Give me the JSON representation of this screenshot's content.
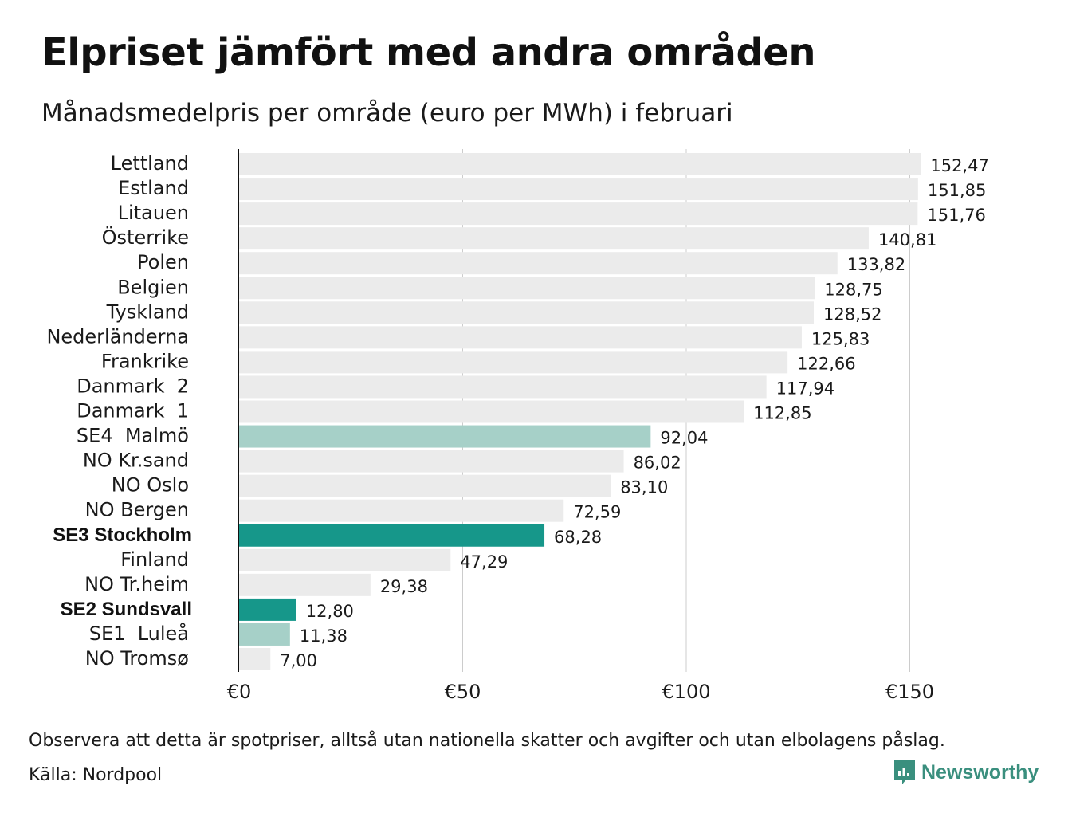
{
  "title": "Elpriset jämfört med andra områden",
  "subtitle": "Månadsmedelpris per område (euro per MWh) i februari",
  "note": "Observera att detta är spotpriser, alltså utan nationella skatter och avgifter och utan elbolagens påslag.",
  "source": "Källa: Nordpool",
  "brand": {
    "name": "Newsworthy",
    "icon": "newsworthy-logo-icon"
  },
  "colors": {
    "default": "#ebebeb",
    "se_other": "#a6d0c8",
    "se_highlight": "#16978a",
    "axis": "#111111",
    "grid": "#cccccc"
  },
  "chart_data": {
    "type": "bar",
    "orientation": "horizontal",
    "categories": [
      "Lettland",
      "Estland",
      "Litauen",
      "Österrike",
      "Polen",
      "Belgien",
      "Tyskland",
      "Nederländerna",
      "Frankrike",
      "Danmark  2",
      "Danmark  1",
      "SE4  Malmö",
      "NO Kr.sand",
      "NO Oslo",
      "NO Bergen",
      "SE3 Stockholm",
      "Finland",
      "NO Tr.heim",
      "SE2 Sundsvall",
      "SE1  Luleå",
      "NO Tromsø"
    ],
    "values": [
      152.47,
      151.85,
      151.76,
      140.81,
      133.82,
      128.75,
      128.52,
      125.83,
      122.66,
      117.94,
      112.85,
      92.04,
      86.02,
      83.1,
      72.59,
      68.28,
      47.29,
      29.38,
      12.8,
      11.38,
      7.0
    ],
    "value_labels": [
      "152,47",
      "151,85",
      "151,76",
      "140,81",
      "133,82",
      "128,75",
      "128,52",
      "125,83",
      "122,66",
      "117,94",
      "112,85",
      "92,04",
      "86,02",
      "83,10",
      "72,59",
      "68,28",
      "47,29",
      "29,38",
      "12,80",
      "11,38",
      "7,00"
    ],
    "styles": [
      "default",
      "default",
      "default",
      "default",
      "default",
      "default",
      "default",
      "default",
      "default",
      "default",
      "default",
      "se_other",
      "default",
      "default",
      "default",
      "se_highlight",
      "default",
      "default",
      "se_highlight",
      "se_other",
      "default"
    ],
    "bold_categories": [
      "SE3 Stockholm",
      "SE2 Sundsvall"
    ],
    "xlim": [
      0,
      170
    ],
    "xticks": [
      0,
      50,
      100,
      150
    ],
    "xtick_labels": [
      "€0",
      "€50",
      "€100",
      "€150"
    ],
    "grid": true,
    "legend": "none"
  }
}
